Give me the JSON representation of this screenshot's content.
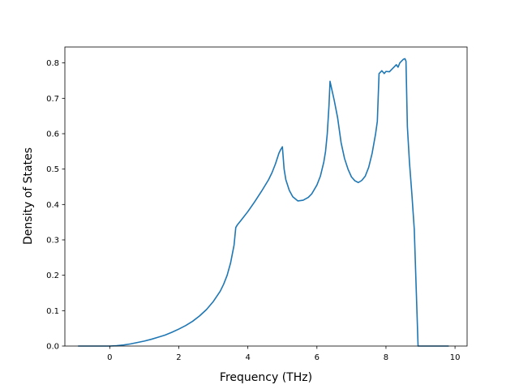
{
  "chart_data": {
    "type": "line",
    "title": "",
    "xlabel": "Frequency (THz)",
    "ylabel": "Density of States",
    "xlim": [
      -1.3,
      10.35
    ],
    "ylim": [
      0.0,
      0.845
    ],
    "xticks": [
      0,
      2,
      4,
      6,
      8,
      10
    ],
    "xtick_labels": [
      "0",
      "2",
      "4",
      "6",
      "8",
      "10"
    ],
    "yticks": [
      0.0,
      0.1,
      0.2,
      0.3,
      0.4,
      0.5,
      0.6,
      0.7,
      0.8
    ],
    "ytick_labels": [
      "0.0",
      "0.1",
      "0.2",
      "0.3",
      "0.4",
      "0.5",
      "0.6",
      "0.7",
      "0.8"
    ],
    "grid": false,
    "legend": "none",
    "series": [
      {
        "color": "#1f77b4",
        "x": [
          -0.9,
          -0.5,
          0.0,
          0.2,
          0.4,
          0.6,
          0.8,
          1.0,
          1.2,
          1.4,
          1.6,
          1.8,
          2.0,
          2.2,
          2.4,
          2.6,
          2.8,
          3.0,
          3.2,
          3.3,
          3.4,
          3.5,
          3.55,
          3.6,
          3.65,
          3.7,
          3.8,
          4.0,
          4.2,
          4.4,
          4.6,
          4.7,
          4.8,
          4.9,
          4.95,
          5.0,
          5.05,
          5.1,
          5.2,
          5.3,
          5.45,
          5.6,
          5.75,
          5.85,
          6.0,
          6.1,
          6.2,
          6.25,
          6.3,
          6.35,
          6.38,
          6.42,
          6.5,
          6.6,
          6.7,
          6.8,
          6.9,
          7.0,
          7.1,
          7.2,
          7.3,
          7.4,
          7.5,
          7.6,
          7.7,
          7.75,
          7.8,
          7.82,
          7.88,
          7.95,
          8.0,
          8.1,
          8.2,
          8.25,
          8.3,
          8.35,
          8.4,
          8.45,
          8.5,
          8.55,
          8.58,
          8.62,
          8.68,
          8.75,
          8.82,
          8.88,
          8.93,
          9.0,
          9.4,
          9.8
        ],
        "y": [
          0.0,
          0.0,
          0.0,
          0.001,
          0.003,
          0.006,
          0.01,
          0.014,
          0.019,
          0.025,
          0.031,
          0.039,
          0.048,
          0.058,
          0.07,
          0.085,
          0.103,
          0.126,
          0.155,
          0.175,
          0.2,
          0.235,
          0.26,
          0.285,
          0.335,
          0.343,
          0.355,
          0.38,
          0.408,
          0.438,
          0.47,
          0.49,
          0.515,
          0.545,
          0.555,
          0.563,
          0.5,
          0.47,
          0.44,
          0.422,
          0.41,
          0.412,
          0.42,
          0.43,
          0.455,
          0.48,
          0.52,
          0.55,
          0.6,
          0.68,
          0.748,
          0.73,
          0.695,
          0.645,
          0.575,
          0.53,
          0.5,
          0.478,
          0.467,
          0.462,
          0.468,
          0.48,
          0.505,
          0.545,
          0.6,
          0.635,
          0.77,
          0.772,
          0.778,
          0.77,
          0.776,
          0.775,
          0.785,
          0.79,
          0.795,
          0.788,
          0.8,
          0.805,
          0.81,
          0.812,
          0.805,
          0.62,
          0.52,
          0.43,
          0.33,
          0.15,
          0.0,
          0.0,
          0.0,
          0.0
        ]
      }
    ]
  }
}
